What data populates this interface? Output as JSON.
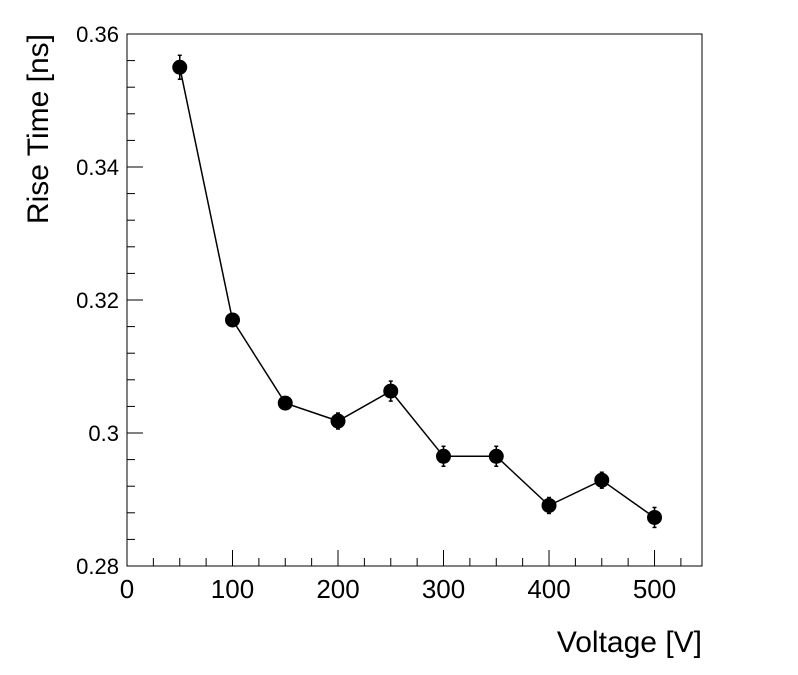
{
  "chart_data": {
    "type": "line",
    "title": "",
    "xlabel": "Voltage [V]",
    "ylabel": "Rise Time [ns]",
    "xlim": [
      0,
      545
    ],
    "ylim": [
      0.28,
      0.36
    ],
    "x_ticks": [
      0,
      100,
      200,
      300,
      400,
      500
    ],
    "x_tick_labels": [
      "0",
      "100",
      "200",
      "300",
      "400",
      "500"
    ],
    "y_ticks": [
      0.28,
      0.3,
      0.32,
      0.34,
      0.36
    ],
    "y_tick_labels": [
      "0.28",
      "0.3",
      "0.32",
      "0.34",
      "0.36"
    ],
    "series": [
      {
        "name": "rise-time",
        "x": [
          50,
          100,
          150,
          200,
          250,
          300,
          350,
          400,
          450,
          500
        ],
        "y": [
          0.355,
          0.317,
          0.3045,
          0.3018,
          0.3063,
          0.2965,
          0.2965,
          0.2891,
          0.2929,
          0.2873
        ],
        "yerr": [
          0.0018,
          0.0009,
          0.0009,
          0.0012,
          0.0015,
          0.0015,
          0.0015,
          0.0012,
          0.0012,
          0.0015
        ]
      }
    ],
    "color": "#000000"
  }
}
